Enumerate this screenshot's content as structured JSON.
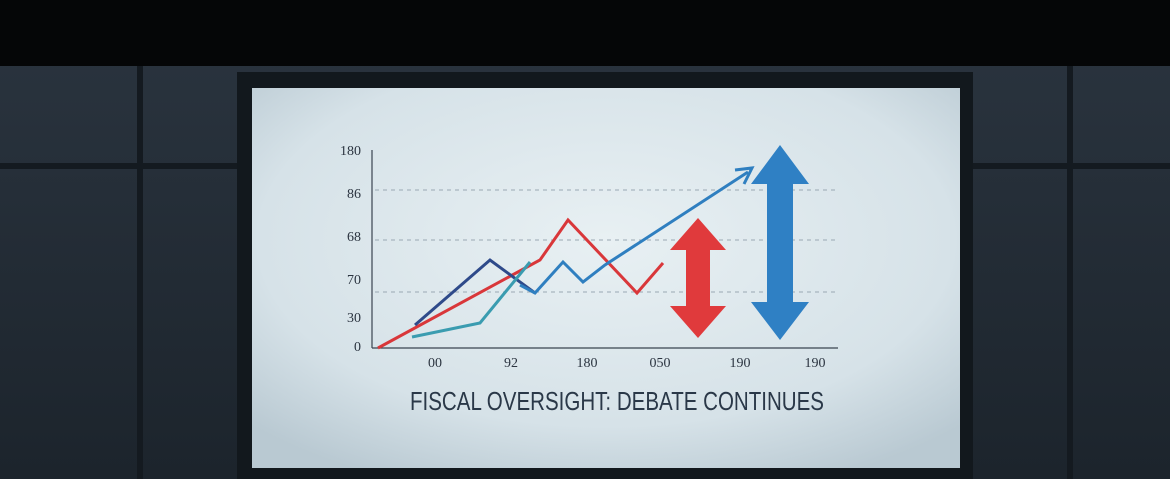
{
  "screen": {
    "y_axis_labels": [
      "180",
      "86",
      "68",
      "70",
      "30",
      "0"
    ],
    "x_axis_labels": [
      "00",
      "92",
      "180",
      "050",
      "190",
      "190"
    ],
    "caption": "FISCAL OVERSIGHT: DEBATE CONTINUES"
  }
}
